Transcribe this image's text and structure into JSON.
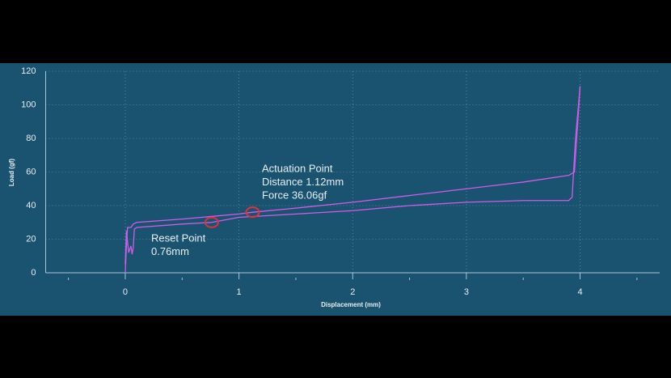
{
  "chart_data": {
    "type": "line",
    "x_label": "Displacement (mm)",
    "y_label": "Load (gf)",
    "xlim": [
      -0.7,
      4.7
    ],
    "xticks": [
      0,
      1,
      2,
      3,
      4
    ],
    "xminorticks": [
      -0.5,
      0.5,
      1.5,
      2.5,
      3.5,
      4.5
    ],
    "ylim": [
      0,
      120
    ],
    "yticks": [
      0,
      20,
      40,
      60,
      80,
      100,
      120
    ],
    "grid": true,
    "series": [
      {
        "color": "#d05ce8",
        "x": [
          0,
          0.01,
          0.02,
          0.05,
          0.07,
          0.1,
          0.5,
          1,
          1.12,
          1.5,
          2,
          2.5,
          3,
          3.5,
          3.9,
          3.95,
          3.98,
          4.0
        ],
        "values": [
          0,
          15,
          27,
          27,
          29,
          30,
          32,
          35,
          36.06,
          38.5,
          42,
          46,
          50,
          54,
          58,
          60,
          90,
          111
        ]
      },
      {
        "color": "#d05ce8",
        "x": [
          4.0,
          3.96,
          3.93,
          3.9,
          3.5,
          3,
          2.5,
          2,
          1.5,
          1,
          0.76,
          0.5,
          0.1,
          0.08,
          0.07,
          0.06,
          0.05,
          0.03,
          0.01,
          0
        ],
        "values": [
          111,
          80,
          45,
          43,
          43,
          42,
          40,
          37,
          35,
          33,
          30,
          29,
          27,
          26,
          15,
          11,
          16,
          12,
          25,
          5
        ]
      }
    ],
    "markers": [
      {
        "x": 1.12,
        "y": 36.06,
        "color": "#e0303a"
      },
      {
        "x": 0.76,
        "y": 30,
        "color": "#e0303a"
      }
    ],
    "annotations": [
      {
        "lines": [
          "Actuation Point",
          "Distance 1.12mm",
          "Force 36.06gf"
        ]
      },
      {
        "lines": [
          "Reset Point",
          "0.76mm"
        ]
      }
    ]
  }
}
